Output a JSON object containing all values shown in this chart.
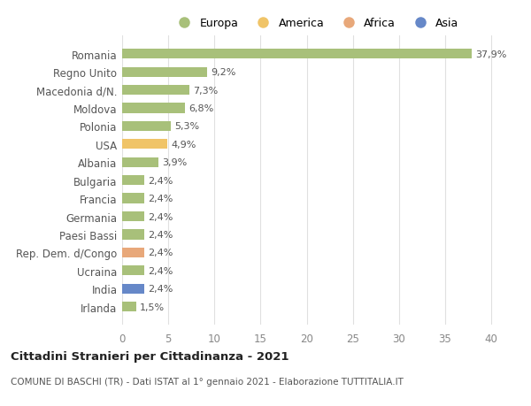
{
  "categories": [
    "Romania",
    "Regno Unito",
    "Macedonia d/N.",
    "Moldova",
    "Polonia",
    "USA",
    "Albania",
    "Bulgaria",
    "Francia",
    "Germania",
    "Paesi Bassi",
    "Rep. Dem. d/Congo",
    "Ucraina",
    "India",
    "Irlanda"
  ],
  "values": [
    37.9,
    9.2,
    7.3,
    6.8,
    5.3,
    4.9,
    3.9,
    2.4,
    2.4,
    2.4,
    2.4,
    2.4,
    2.4,
    2.4,
    1.5
  ],
  "colors": [
    "#a8c07a",
    "#a8c07a",
    "#a8c07a",
    "#a8c07a",
    "#a8c07a",
    "#f0c468",
    "#a8c07a",
    "#a8c07a",
    "#a8c07a",
    "#a8c07a",
    "#a8c07a",
    "#e8a87a",
    "#a8c07a",
    "#6688c8",
    "#a8c07a"
  ],
  "labels": [
    "37,9%",
    "9,2%",
    "7,3%",
    "6,8%",
    "5,3%",
    "4,9%",
    "3,9%",
    "2,4%",
    "2,4%",
    "2,4%",
    "2,4%",
    "2,4%",
    "2,4%",
    "2,4%",
    "1,5%"
  ],
  "legend_labels": [
    "Europa",
    "America",
    "Africa",
    "Asia"
  ],
  "legend_colors": [
    "#a8c07a",
    "#f0c468",
    "#e8a87a",
    "#6688c8"
  ],
  "title": "Cittadini Stranieri per Cittadinanza - 2021",
  "subtitle": "COMUNE DI BASCHI (TR) - Dati ISTAT al 1° gennaio 2021 - Elaborazione TUTTITALIA.IT",
  "xlim": [
    0,
    42
  ],
  "xticks": [
    0,
    5,
    10,
    15,
    20,
    25,
    30,
    35,
    40
  ],
  "bg_color": "#ffffff",
  "grid_color": "#e0e0e0"
}
